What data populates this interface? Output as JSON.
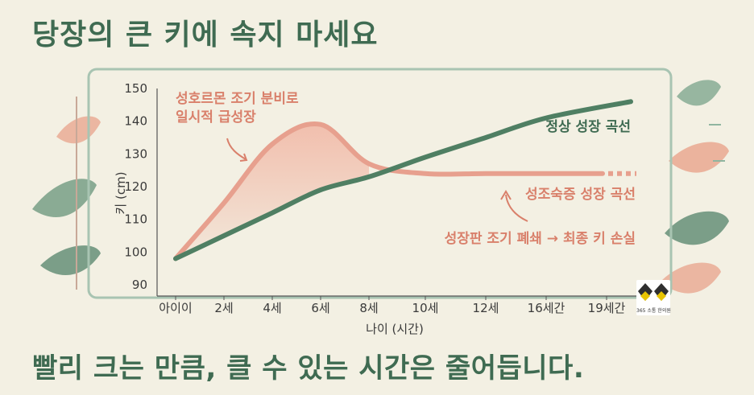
{
  "title": "당장의 큰 키에 속지 마세요",
  "bottom_text": "빨리 크는 만큼, 클 수 있는 시간은 줄어듭니다.",
  "logo_text": "365 소통 한의원",
  "chart_data": {
    "type": "line",
    "ylabel": "키 (cm)",
    "xlabel": "나이 (시간)",
    "ylim": [
      90,
      150
    ],
    "yticks": [
      90,
      100,
      110,
      120,
      130,
      140,
      150
    ],
    "categories": [
      "아이이",
      "2세",
      "4세",
      "6세",
      "8세",
      "10세",
      "12세",
      "16세간",
      "19세간"
    ],
    "series": [
      {
        "name": "정상 성장 곡선",
        "color": "#4f7f63",
        "values": [
          98,
          105,
          112,
          119,
          123,
          129,
          135,
          141,
          146
        ]
      },
      {
        "name": "성조숙증 성장 곡선",
        "color": "#e7a08e",
        "values": [
          98,
          115,
          133,
          139,
          127,
          124,
          124,
          124,
          124
        ]
      }
    ],
    "annotations": [
      {
        "text": "성호르몬 조기 분비로",
        "color": "red"
      },
      {
        "text": "일시적 급성장",
        "color": "red"
      },
      {
        "text": "성장판 조기 폐쇄 → 최종 키 손실",
        "color": "red"
      }
    ]
  },
  "colors": {
    "background": "#f3f0e3",
    "green": "#3f6b52",
    "red": "#d9806b",
    "frame": "#a8c4b2"
  }
}
